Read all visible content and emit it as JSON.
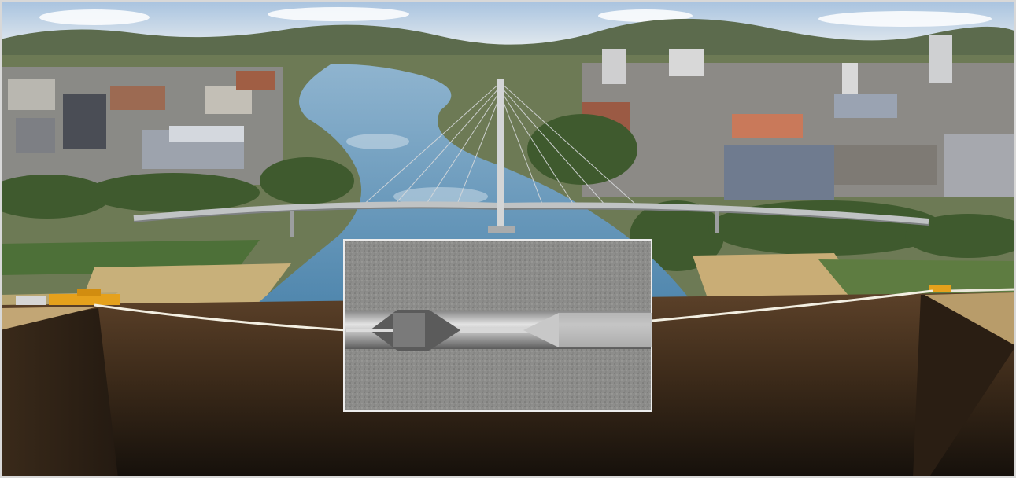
{
  "scene": {
    "description_free": true,
    "palette": {
      "sky_top": "#a9c4e0",
      "sky_bottom": "#dce6ee",
      "hills": "#5f6f4e",
      "river": "#7fa9c4",
      "soil_top": "#5a3f26",
      "soil_bottom": "#1c140d",
      "bridge": "#b9bcbc",
      "machine": "#e5a11c",
      "pipe": "#f0eee6",
      "inset_border": "#e8e8e8"
    }
  }
}
